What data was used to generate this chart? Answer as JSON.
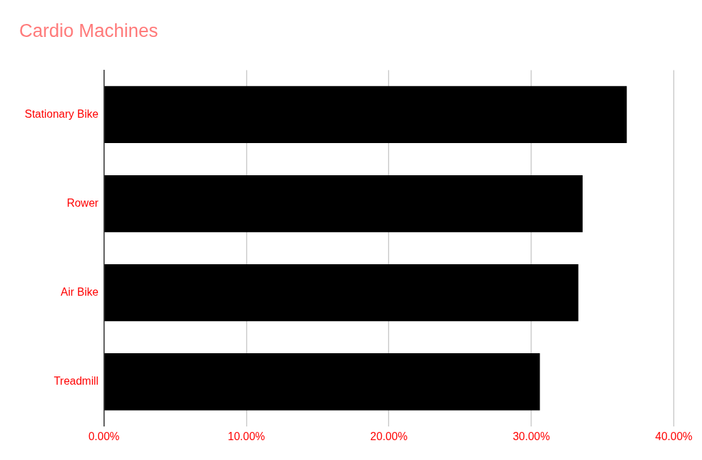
{
  "chart_data": {
    "type": "bar",
    "orientation": "horizontal",
    "title": "Cardio Machines",
    "categories": [
      "Stationary Bike",
      "Rower",
      "Air Bike",
      "Treadmill"
    ],
    "values": [
      36.7,
      33.6,
      33.3,
      30.6
    ],
    "color": "#000000",
    "xlim": [
      0,
      40
    ],
    "xticks": [
      {
        "value": 0,
        "label": "0.00%"
      },
      {
        "value": 10,
        "label": "10.00%"
      },
      {
        "value": 20,
        "label": "20.00%"
      },
      {
        "value": 30,
        "label": "30.00%"
      },
      {
        "value": 40,
        "label": "40.00%"
      }
    ],
    "grid": "x",
    "legend": false
  }
}
